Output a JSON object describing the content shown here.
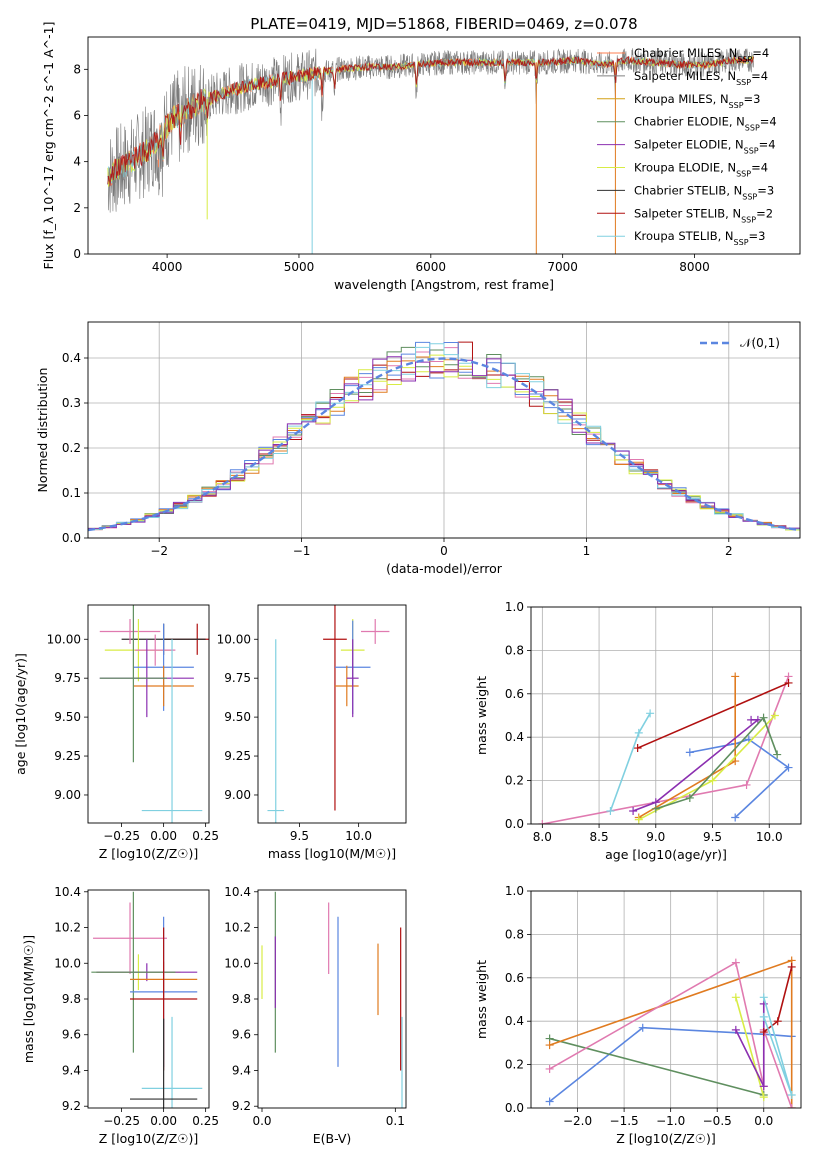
{
  "figure_title": "PLATE=0419, MJD=51868, FIBERID=0469, z=0.078",
  "colors": {
    "cm": "#ff7f50",
    "sm": "#808080",
    "km": "#d4a017",
    "ce": "#5f8f5f",
    "se": "#8b2fb0",
    "ke": "#d8ec45",
    "cs": "#303030",
    "ss": "#b01010",
    "ks": "#80d0e0",
    "pink": "#e07ab0",
    "blue": "#5b86e0",
    "orange": "#e07b20",
    "gauss": "#5b86e0"
  },
  "chart_data": [
    {
      "type": "line",
      "title": "PLATE=0419, MJD=51868, FIBERID=0469, z=0.078",
      "xlabel": "wavelength [Angstrom, rest frame]",
      "ylabel": "Flux [f_λ 10^-17 erg cm^-2 s^-1 A^-1]",
      "xlim": [
        3400,
        8800
      ],
      "ylim": [
        0,
        9.4
      ],
      "xticks": [
        4000,
        5000,
        6000,
        7000,
        8000
      ],
      "yticks": [
        0,
        2,
        4,
        6,
        8
      ],
      "grid": false,
      "legend": "right",
      "continuum": {
        "x": [
          3550,
          3700,
          3850,
          3950,
          4050,
          4250,
          4500,
          4700,
          4900,
          5100,
          5300,
          5500,
          5700,
          5900,
          6100,
          6300,
          6500,
          6700,
          6900,
          7100,
          7300,
          7500,
          7700,
          7900,
          8100,
          8300,
          8450
        ],
        "y": [
          3.4,
          3.9,
          4.5,
          5.2,
          5.9,
          6.6,
          7.1,
          7.4,
          7.6,
          7.8,
          8.0,
          8.1,
          8.1,
          8.2,
          8.3,
          8.3,
          8.3,
          8.3,
          8.3,
          8.4,
          8.2,
          8.4,
          8.3,
          8.2,
          8.2,
          8.4,
          8.4
        ]
      },
      "absorption_lines": [
        3934,
        3969,
        4102,
        4304,
        4861,
        5175,
        5270,
        5890,
        6563,
        6800,
        7400
      ],
      "series": [
        {
          "name": "Chabrier MILES, N_SSP=4",
          "label_main": "Chabrier MILES, N",
          "label_sub": "SSP",
          "label_end": "=4"
        },
        {
          "name": "Salpeter MILES, N_SSP=4",
          "label_main": "Salpeter MILES, N",
          "label_sub": "SSP",
          "label_end": "=4"
        },
        {
          "name": "Kroupa MILES, N_SSP=3",
          "label_main": "Kroupa MILES, N",
          "label_sub": "SSP",
          "label_end": "=3"
        },
        {
          "name": "Chabrier ELODIE, N_SSP=4",
          "label_main": "Chabrier ELODIE, N",
          "label_sub": "SSP",
          "label_end": "=4"
        },
        {
          "name": "Salpeter ELODIE, N_SSP=4",
          "label_main": "Salpeter ELODIE, N",
          "label_sub": "SSP",
          "label_end": "=4"
        },
        {
          "name": "Kroupa ELODIE, N_SSP=4",
          "label_main": "Kroupa ELODIE, N",
          "label_sub": "SSP",
          "label_end": "=4"
        },
        {
          "name": "Chabrier STELIB, N_SSP=3",
          "label_main": "Chabrier STELIB, N",
          "label_sub": "SSP",
          "label_end": "=3"
        },
        {
          "name": "Salpeter STELIB, N_SSP=2",
          "label_main": "Salpeter STELIB, N",
          "label_sub": "SSP",
          "label_end": "=2"
        },
        {
          "name": "Kroupa STELIB, N_SSP=3",
          "label_main": "Kroupa STELIB, N",
          "label_sub": "SSP",
          "label_end": "=3"
        }
      ]
    },
    {
      "type": "histogram",
      "xlabel": "(data-model)/error",
      "ylabel": "Normed distribution",
      "xlim": [
        -2.5,
        2.5
      ],
      "ylim": [
        0,
        0.48
      ],
      "xticks": [
        -2,
        -1,
        0,
        1,
        2
      ],
      "yticks": [
        0.0,
        0.1,
        0.2,
        0.3,
        0.4
      ],
      "grid": true,
      "legend": "top-right",
      "bin_width": 0.1,
      "gaussian": {
        "name": "𝒩(0,1)",
        "mean": 0,
        "sigma": 1
      },
      "histogram_colors": [
        "#b01010",
        "#e07ab0",
        "#5f8f5f",
        "#5b86e0",
        "#e07b20",
        "#d8ec45",
        "#80d0e0",
        "#8b2fb0"
      ]
    },
    {
      "type": "scatter",
      "panel": "age-vs-Z",
      "xlabel": "Z [log10(Z/Z☉)]",
      "ylabel": "age [log10(age/yr)]",
      "xlim": [
        -0.45,
        0.27
      ],
      "ylim": [
        8.82,
        10.22
      ],
      "xticks": [
        -0.25,
        0.0,
        0.25
      ],
      "yticks": [
        9.0,
        9.25,
        9.5,
        9.75,
        10.0
      ],
      "grid": false,
      "points": [
        {
          "x": 0.2,
          "y": 10.0,
          "xerr": 0.2,
          "yerr": 0.1,
          "c": "ss"
        },
        {
          "x": 0.0,
          "y": 10.0,
          "xerr": 0.25,
          "yerr": 0.1,
          "c": "cs"
        },
        {
          "x": -0.2,
          "y": 10.05,
          "xerr": 0.18,
          "yerr": 0.08,
          "c": "pink"
        },
        {
          "x": -0.15,
          "y": 9.93,
          "xerr": 0.2,
          "yerr": 0.2,
          "c": "ke"
        },
        {
          "x": -0.05,
          "y": 9.93,
          "xerr": 0.12,
          "yerr": 0.1,
          "c": "pink"
        },
        {
          "x": 0.0,
          "y": 9.82,
          "xerr": 0.18,
          "yerr": 0.28,
          "c": "blue"
        },
        {
          "x": 0.0,
          "y": 9.7,
          "xerr": 0.18,
          "yerr": 0.13,
          "c": "orange"
        },
        {
          "x": -0.1,
          "y": 9.75,
          "xerr": 0.28,
          "yerr": 0.25,
          "c": "se"
        },
        {
          "x": -0.18,
          "y": 9.75,
          "xerr": 0.2,
          "yerr": 0.54,
          "c": "ce"
        },
        {
          "x": 0.05,
          "y": 8.9,
          "xerr": 0.18,
          "yerr": 1.1,
          "c": "ks"
        }
      ]
    },
    {
      "type": "scatter",
      "panel": "age-vs-mass",
      "xlabel": "mass [log10(M/M☉)]",
      "ylabel": "",
      "xlim": [
        9.15,
        10.4
      ],
      "ylim": [
        8.82,
        10.22
      ],
      "xticks": [
        9.5,
        10.0
      ],
      "yticks": [
        9.0,
        9.25,
        9.5,
        9.75,
        10.0
      ],
      "grid": false,
      "points": [
        {
          "x": 9.8,
          "y": 10.0,
          "xerr": 0.1,
          "yerr": 1.1,
          "c": "ss"
        },
        {
          "x": 10.14,
          "y": 10.05,
          "xerr": 0.12,
          "yerr": 0.08,
          "c": "pink"
        },
        {
          "x": 9.95,
          "y": 9.93,
          "xerr": 0.1,
          "yerr": 0.2,
          "c": "ke"
        },
        {
          "x": 9.95,
          "y": 9.82,
          "xerr": 0.15,
          "yerr": 0.3,
          "c": "blue"
        },
        {
          "x": 9.9,
          "y": 9.7,
          "xerr": 0.1,
          "yerr": 0.13,
          "c": "orange"
        },
        {
          "x": 9.95,
          "y": 9.75,
          "xerr": 0.05,
          "yerr": 0.25,
          "c": "se"
        },
        {
          "x": 9.3,
          "y": 8.9,
          "xerr": 0.07,
          "yerr": 1.1,
          "c": "ks"
        }
      ]
    },
    {
      "type": "line",
      "panel": "mass-weight-vs-age",
      "xlabel": "age [log10(age/yr)]",
      "ylabel": "mass weight",
      "xlim": [
        7.9,
        10.28
      ],
      "ylim": [
        0,
        1
      ],
      "xticks": [
        8.0,
        8.5,
        9.0,
        9.5,
        10.0
      ],
      "yticks": [
        0.0,
        0.2,
        0.4,
        0.6,
        0.8,
        1.0
      ],
      "grid": true,
      "series": [
        {
          "c": "pink",
          "x": [
            8.0,
            9.8,
            10.17
          ],
          "y": [
            0.0,
            0.18,
            0.68
          ]
        },
        {
          "c": "ss",
          "x": [
            8.84,
            10.17
          ],
          "y": [
            0.35,
            0.65
          ]
        },
        {
          "c": "ks",
          "x": [
            8.6,
            8.85,
            8.95
          ],
          "y": [
            0.06,
            0.42,
            0.51
          ]
        },
        {
          "c": "blue",
          "x": [
            9.3,
            9.7,
            9.82,
            10.17,
            9.7
          ],
          "y": [
            0.33,
            0.37,
            0.39,
            0.26,
            0.03
          ]
        },
        {
          "c": "orange",
          "x": [
            8.85,
            9.7,
            9.7
          ],
          "y": [
            0.03,
            0.29,
            0.68
          ]
        },
        {
          "c": "se",
          "x": [
            8.8,
            9.0,
            9.9,
            9.84
          ],
          "y": [
            0.06,
            0.1,
            0.48,
            0.48
          ]
        },
        {
          "c": "ke",
          "x": [
            8.85,
            9.5,
            10.05
          ],
          "y": [
            0.02,
            0.2,
            0.5
          ]
        },
        {
          "c": "ce",
          "x": [
            9.0,
            9.3,
            9.95,
            10.07
          ],
          "y": [
            0.07,
            0.12,
            0.49,
            0.32
          ]
        }
      ]
    },
    {
      "type": "scatter",
      "panel": "mass-vs-Z",
      "xlabel": "Z [log10(Z/Z☉)]",
      "ylabel": "mass [log10(M/M☉)]",
      "xlim": [
        -0.45,
        0.27
      ],
      "ylim": [
        9.19,
        10.41
      ],
      "xticks": [
        -0.25,
        0.0,
        0.25
      ],
      "yticks": [
        9.2,
        9.4,
        9.6,
        9.8,
        10.0,
        10.2,
        10.4
      ],
      "grid": false,
      "points": [
        {
          "x": -0.2,
          "y": 10.14,
          "xerr": 0.22,
          "yerr": 0.2,
          "c": "pink"
        },
        {
          "x": -0.15,
          "y": 9.95,
          "xerr": 0.25,
          "yerr": 0.1,
          "c": "ke"
        },
        {
          "x": -0.1,
          "y": 9.95,
          "xerr": 0.3,
          "yerr": 0.05,
          "c": "se"
        },
        {
          "x": -0.18,
          "y": 9.95,
          "xerr": 0.25,
          "yerr": 0.45,
          "c": "ce"
        },
        {
          "x": 0.0,
          "y": 9.91,
          "xerr": 0.2,
          "yerr": 0.1,
          "c": "orange"
        },
        {
          "x": 0.0,
          "y": 9.84,
          "xerr": 0.2,
          "yerr": 0.42,
          "c": "blue"
        },
        {
          "x": 0.0,
          "y": 9.8,
          "xerr": 0.2,
          "yerr": 0.4,
          "c": "ss"
        },
        {
          "x": 0.05,
          "y": 9.3,
          "xerr": 0.18,
          "yerr": 0.4,
          "c": "ks"
        },
        {
          "x": 0.0,
          "y": 9.24,
          "xerr": 0.2,
          "yerr": 0.45,
          "c": "cs"
        }
      ]
    },
    {
      "type": "scatter",
      "panel": "mass-vs-EBV",
      "xlabel": "E(B-V)",
      "ylabel": "",
      "xlim": [
        -0.003,
        0.108
      ],
      "ylim": [
        9.19,
        10.41
      ],
      "xticks": [
        0.0,
        0.1
      ],
      "yticks": [
        9.2,
        9.4,
        9.6,
        9.8,
        10.0,
        10.2,
        10.4
      ],
      "grid": false,
      "points": [
        {
          "x": 0.05,
          "y": 10.14,
          "xerr": 0,
          "yerr": 0.2,
          "c": "pink"
        },
        {
          "x": 0.01,
          "y": 9.95,
          "xerr": 0,
          "yerr": 0.45,
          "c": "ce"
        },
        {
          "x": 0.01,
          "y": 9.95,
          "xerr": 0,
          "yerr": 0.2,
          "c": "se"
        },
        {
          "x": 0.0,
          "y": 9.95,
          "xerr": 0,
          "yerr": 0.15,
          "c": "ke"
        },
        {
          "x": 0.057,
          "y": 9.84,
          "xerr": 0,
          "yerr": 0.42,
          "c": "blue"
        },
        {
          "x": 0.087,
          "y": 9.91,
          "xerr": 0,
          "yerr": 0.2,
          "c": "orange"
        },
        {
          "x": 0.104,
          "y": 9.8,
          "xerr": 0,
          "yerr": 0.4,
          "c": "ss"
        },
        {
          "x": 0.105,
          "y": 9.3,
          "xerr": 0,
          "yerr": 0.4,
          "c": "ks"
        }
      ]
    },
    {
      "type": "line",
      "panel": "mass-weight-vs-Z",
      "xlabel": "Z [log10(Z/Z☉)]",
      "ylabel": "mass weight",
      "xlim": [
        -2.5,
        0.4
      ],
      "ylim": [
        0,
        1
      ],
      "xticks": [
        -2.0,
        -1.5,
        -1.0,
        -0.5,
        0.0
      ],
      "yticks": [
        0.0,
        0.2,
        0.4,
        0.6,
        0.8,
        1.0
      ],
      "grid": true,
      "series": [
        {
          "c": "blue",
          "x": [
            -2.3,
            -1.3,
            0.0,
            0.3
          ],
          "y": [
            0.03,
            0.37,
            0.34,
            0.33
          ]
        },
        {
          "c": "ce",
          "x": [
            -2.3,
            0.0
          ],
          "y": [
            0.32,
            0.06
          ]
        },
        {
          "c": "orange",
          "x": [
            -2.3,
            0.3,
            0.3
          ],
          "y": [
            0.29,
            0.68,
            0.0
          ]
        },
        {
          "c": "pink",
          "x": [
            -2.3,
            -0.3,
            0.0,
            0.0,
            0.3
          ],
          "y": [
            0.18,
            0.67,
            0.1,
            0.36,
            0.0
          ]
        },
        {
          "c": "ke",
          "x": [
            -0.3,
            0.0
          ],
          "y": [
            0.51,
            0.05
          ]
        },
        {
          "c": "se",
          "x": [
            -0.3,
            0.0,
            0.0
          ],
          "y": [
            0.36,
            0.1,
            0.48
          ]
        },
        {
          "c": "ss",
          "x": [
            0.0,
            0.15,
            0.3
          ],
          "y": [
            0.35,
            0.4,
            0.65
          ]
        },
        {
          "c": "ks",
          "x": [
            0.0,
            0.3,
            0.0
          ],
          "y": [
            0.51,
            0.06,
            0.42
          ]
        }
      ]
    }
  ]
}
